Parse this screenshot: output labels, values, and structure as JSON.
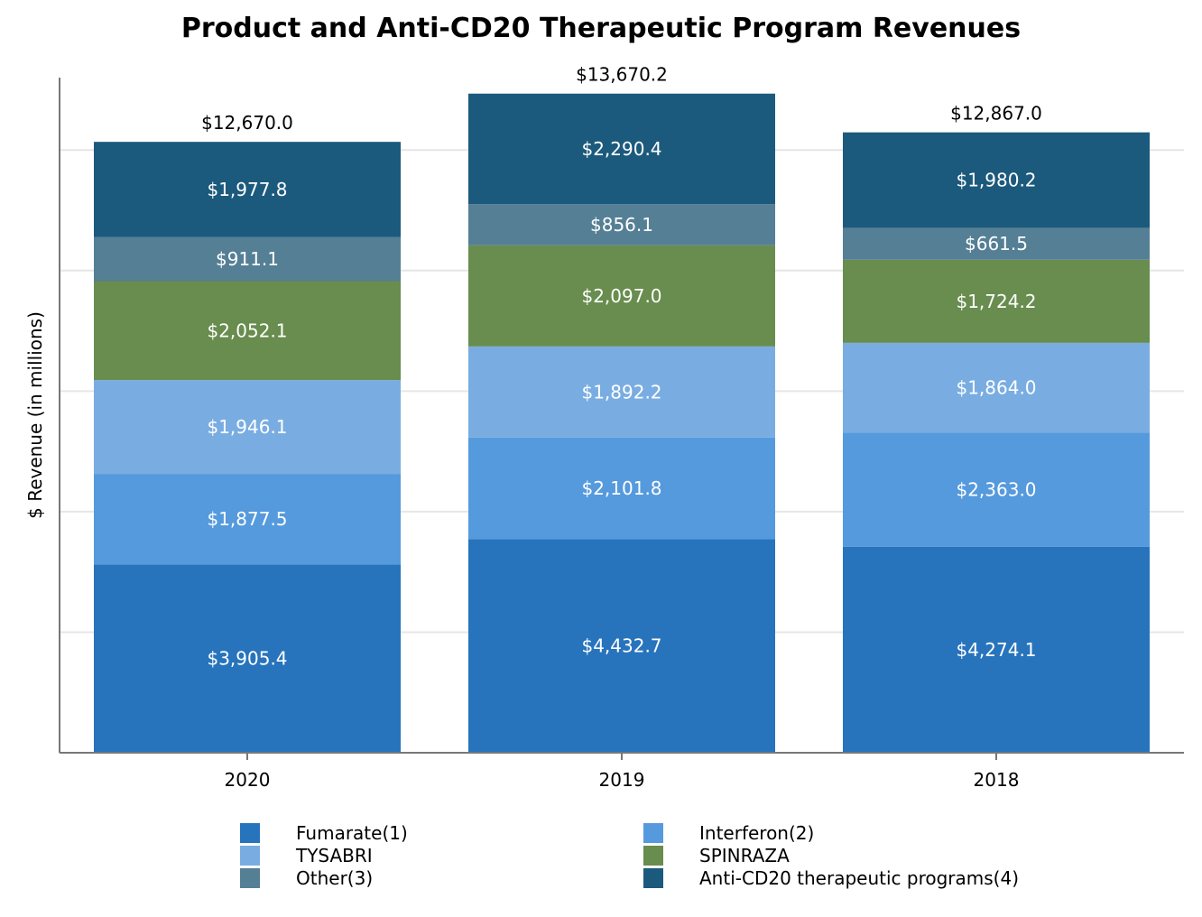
{
  "chart_data": {
    "type": "bar",
    "stacked": true,
    "title": "Product and Anti-CD20 Therapeutic Program Revenues",
    "xlabel": "",
    "ylabel": "$ Revenue (in millions)",
    "ylim": [
      0,
      14000
    ],
    "grid": true,
    "legend_position": "bottom",
    "categories": [
      "2020",
      "2019",
      "2018"
    ],
    "series": [
      {
        "name": "Fumarate(1)",
        "color": "#2774bd",
        "values": [
          3905.4,
          4432.7,
          4274.1
        ],
        "labels": [
          "$3,905.4",
          "$4,432.7",
          "$4,274.1"
        ]
      },
      {
        "name": "Interferon(2)",
        "color": "#559add",
        "values": [
          1877.5,
          2101.8,
          2363.0
        ],
        "labels": [
          "$1,877.5",
          "$2,101.8",
          "$2,363.0"
        ]
      },
      {
        "name": "TYSABRI",
        "color": "#79ade2",
        "values": [
          1946.1,
          1892.2,
          1864.0
        ],
        "labels": [
          "$1,946.1",
          "$1,892.2",
          "$1,864.0"
        ]
      },
      {
        "name": "SPINRAZA",
        "color": "#688d4e",
        "values": [
          2052.1,
          2097.0,
          1724.2
        ],
        "labels": [
          "$2,052.1",
          "$2,097.0",
          "$1,724.2"
        ]
      },
      {
        "name": "Other(3)",
        "color": "#557f95",
        "values": [
          911.1,
          856.1,
          661.5
        ],
        "labels": [
          "$911.1",
          "$856.1",
          "$661.5"
        ]
      },
      {
        "name": "Anti-CD20 therapeutic programs(4)",
        "color": "#1c5a7d",
        "values": [
          1977.8,
          2290.4,
          1980.2
        ],
        "labels": [
          "$1,977.8",
          "$2,290.4",
          "$1,980.2"
        ]
      }
    ],
    "totals": [
      12670.0,
      13670.2,
      12867.0
    ],
    "total_labels": [
      "$12,670.0",
      "$13,670.2",
      "$12,867.0"
    ]
  }
}
